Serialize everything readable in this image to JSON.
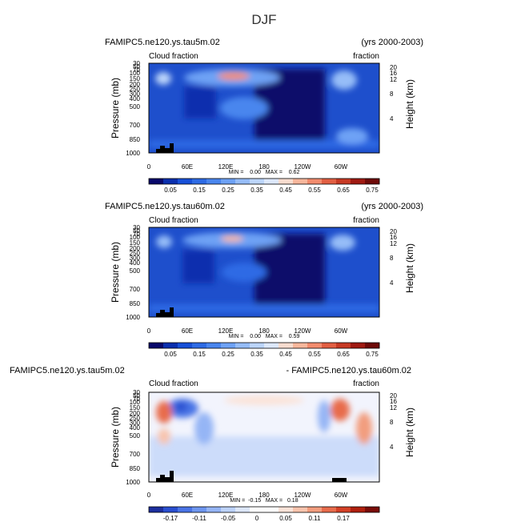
{
  "main_title": "DJF",
  "panels": [
    {
      "name": "panel-1",
      "case_title": "FAMIPC5.ne120.ys.tau5m.02",
      "right_title": "(yrs 2000-2003)",
      "variable": "Cloud fraction",
      "units": "fraction",
      "stats": "MIN =    0.00   MAX =    0.62",
      "colorbar_labels": [
        "0.05",
        "0.15",
        "0.25",
        "0.35",
        "0.45",
        "0.55",
        "0.65",
        "0.75"
      ]
    },
    {
      "name": "panel-2",
      "case_title": "FAMIPC5.ne120.ys.tau60m.02",
      "right_title": "(yrs 2000-2003)",
      "variable": "Cloud fraction",
      "units": "fraction",
      "stats": "MIN =    0.00   MAX =    0.59",
      "colorbar_labels": [
        "0.05",
        "0.15",
        "0.25",
        "0.35",
        "0.45",
        "0.55",
        "0.65",
        "0.75"
      ]
    },
    {
      "name": "panel-3",
      "case_title": "FAMIPC5.ne120.ys.tau5m.02",
      "right_title": "- FAMIPC5.ne120.ys.tau60m.02",
      "variable": "Cloud fraction",
      "units": "fraction",
      "stats": "MIN =  -0.15   MAX =   0.18",
      "colorbar_labels": [
        "-0.17",
        "-0.11",
        "-0.05",
        "0",
        "0.05",
        "0.11",
        "0.17"
      ]
    }
  ],
  "chart_data": [
    {
      "type": "heatmap",
      "title": "FAMIPC5.ne120.ys.tau5m.02",
      "ylabel": "Pressure (mb)",
      "ylabel_right": "Height (km)",
      "xticks": [
        "0",
        "60E",
        "120E",
        "180",
        "120W",
        "60W"
      ],
      "yticks": [
        "30",
        "50",
        "70",
        "100",
        "150",
        "200",
        "250",
        "300",
        "400",
        "500",
        "700",
        "850",
        "1000"
      ],
      "yticks_right": [
        "20",
        "16",
        "12",
        "8",
        "4"
      ],
      "value_range": [
        0.0,
        0.62
      ],
      "colorbar_range": [
        0.0,
        0.8
      ],
      "colors": [
        "#08086b",
        "#0a2fae",
        "#1750d8",
        "#2e6be5",
        "#4a86ee",
        "#6ea2f5",
        "#96bdf8",
        "#bcd5fb",
        "#dde8fc",
        "#f7dccf",
        "#f7b79c",
        "#f28c6e",
        "#e25f43",
        "#c73a25",
        "#a01a12",
        "#6e0a08"
      ]
    },
    {
      "type": "heatmap",
      "title": "FAMIPC5.ne120.ys.tau60m.02",
      "ylabel": "Pressure (mb)",
      "ylabel_right": "Height (km)",
      "xticks": [
        "0",
        "60E",
        "120E",
        "180",
        "120W",
        "60W"
      ],
      "yticks": [
        "30",
        "50",
        "70",
        "100",
        "150",
        "200",
        "250",
        "300",
        "400",
        "500",
        "700",
        "850",
        "1000"
      ],
      "yticks_right": [
        "20",
        "16",
        "12",
        "8",
        "4"
      ],
      "value_range": [
        0.0,
        0.59
      ],
      "colorbar_range": [
        0.0,
        0.8
      ]
    },
    {
      "type": "heatmap",
      "title": "FAMIPC5.ne120.ys.tau5m.02 - FAMIPC5.ne120.ys.tau60m.02",
      "ylabel": "Pressure (mb)",
      "ylabel_right": "Height (km)",
      "xticks": [
        "0",
        "60E",
        "120E",
        "180",
        "120W",
        "60W"
      ],
      "yticks": [
        "30",
        "50",
        "70",
        "100",
        "150",
        "200",
        "250",
        "300",
        "400",
        "500",
        "700",
        "850",
        "1000"
      ],
      "yticks_right": [
        "20",
        "16",
        "12",
        "8",
        "4"
      ],
      "value_range": [
        -0.15,
        0.18
      ],
      "colorbar_range": [
        -0.2,
        0.2
      ],
      "colors": [
        "#1d2f9e",
        "#2a4fd0",
        "#4a74e6",
        "#6e96ef",
        "#95b5f5",
        "#bcd2fa",
        "#dde7fb",
        "#ffffff",
        "#ffffff",
        "#fbe3d8",
        "#f8c4ad",
        "#f29d7e",
        "#e86c4c",
        "#d44127",
        "#b0200f",
        "#7a0c08"
      ]
    }
  ]
}
